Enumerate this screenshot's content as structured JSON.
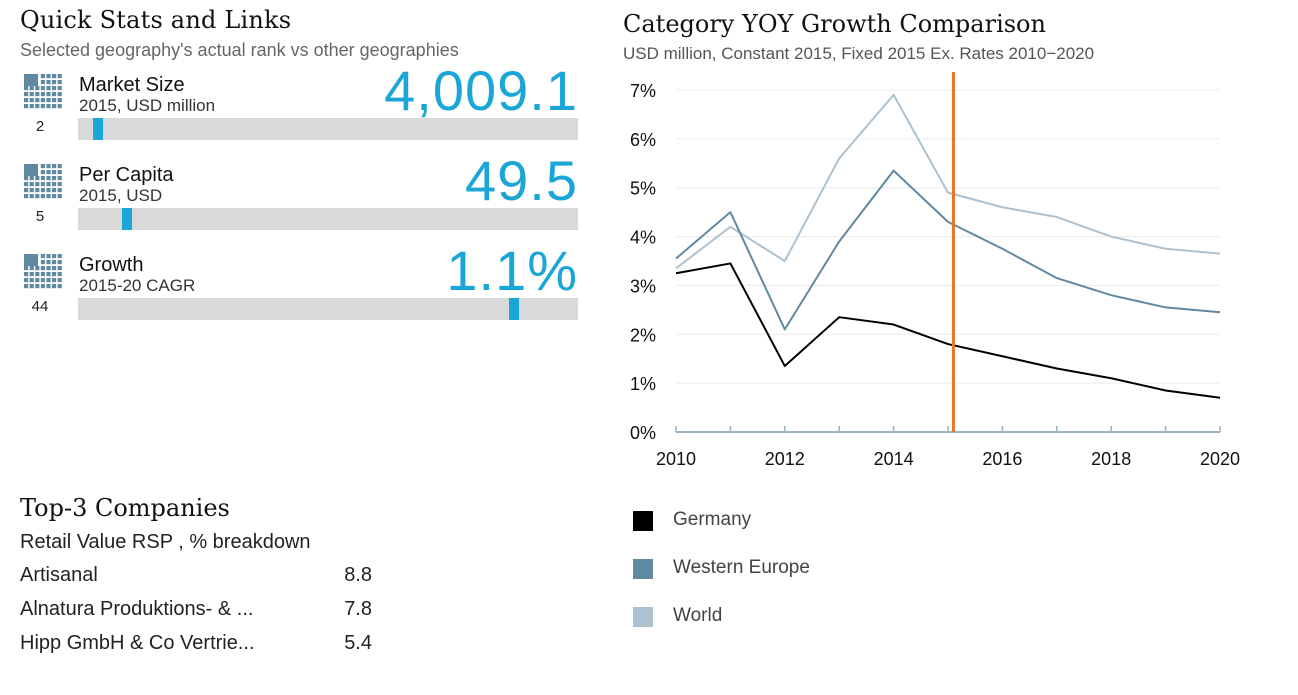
{
  "quick_stats": {
    "title": "Quick Stats and Links",
    "subtitle": "Selected geography's actual rank vs other geographies",
    "accent_color": "#1aa6d6",
    "icon": "grid-icon",
    "items": [
      {
        "name": "Market Size",
        "unit": "2015, USD million",
        "value": "4,009.1",
        "rank": "2",
        "position_fraction": 0.03
      },
      {
        "name": "Per Capita",
        "unit": "2015, USD",
        "value": "49.5",
        "rank": "5",
        "position_fraction": 0.09
      },
      {
        "name": "Growth",
        "unit": "2015-20 CAGR",
        "value": "1.1%",
        "rank": "44",
        "position_fraction": 0.88
      }
    ]
  },
  "top_companies": {
    "title": "Top-3 Companies",
    "subtitle": "Retail Value RSP , % breakdown",
    "rows": [
      {
        "name": "Artisanal",
        "value": "8.8"
      },
      {
        "name": "Alnatura Produktions- & ...",
        "value": "7.8"
      },
      {
        "name": "Hipp GmbH & Co Vertrie...",
        "value": "5.4"
      }
    ]
  },
  "chart_data": {
    "type": "line",
    "title": "Category YOY Growth Comparison",
    "subtitle": "USD million, Constant 2015, Fixed 2015 Ex. Rates  2010−2020",
    "x": [
      2010,
      2011,
      2012,
      2013,
      2014,
      2015,
      2016,
      2017,
      2018,
      2019,
      2020
    ],
    "xticks": [
      2010,
      2012,
      2014,
      2016,
      2018,
      2020
    ],
    "xlim": [
      2010,
      2020
    ],
    "ylim": [
      0,
      7
    ],
    "yticks": [
      0,
      1,
      2,
      3,
      4,
      5,
      6,
      7
    ],
    "ytick_labels": [
      "0%",
      "1%",
      "2%",
      "3%",
      "4%",
      "5%",
      "6%",
      "7%"
    ],
    "grid": true,
    "legend_placement": "bottom",
    "marker_x": 2015.1,
    "marker_color": "#e87722",
    "series": [
      {
        "name": "Germany",
        "color": "#000000",
        "values": [
          3.25,
          3.45,
          1.35,
          2.35,
          2.2,
          1.8,
          1.55,
          1.3,
          1.1,
          0.85,
          0.7
        ]
      },
      {
        "name": "Western Europe",
        "color": "#5f8aa1",
        "values": [
          3.55,
          4.5,
          2.1,
          3.9,
          5.35,
          4.3,
          3.75,
          3.15,
          2.8,
          2.55,
          2.45
        ]
      },
      {
        "name": "World",
        "color": "#adc1cf",
        "values": [
          3.35,
          4.2,
          3.5,
          5.6,
          6.9,
          4.9,
          4.6,
          4.4,
          4.0,
          3.75,
          3.65
        ]
      }
    ]
  }
}
